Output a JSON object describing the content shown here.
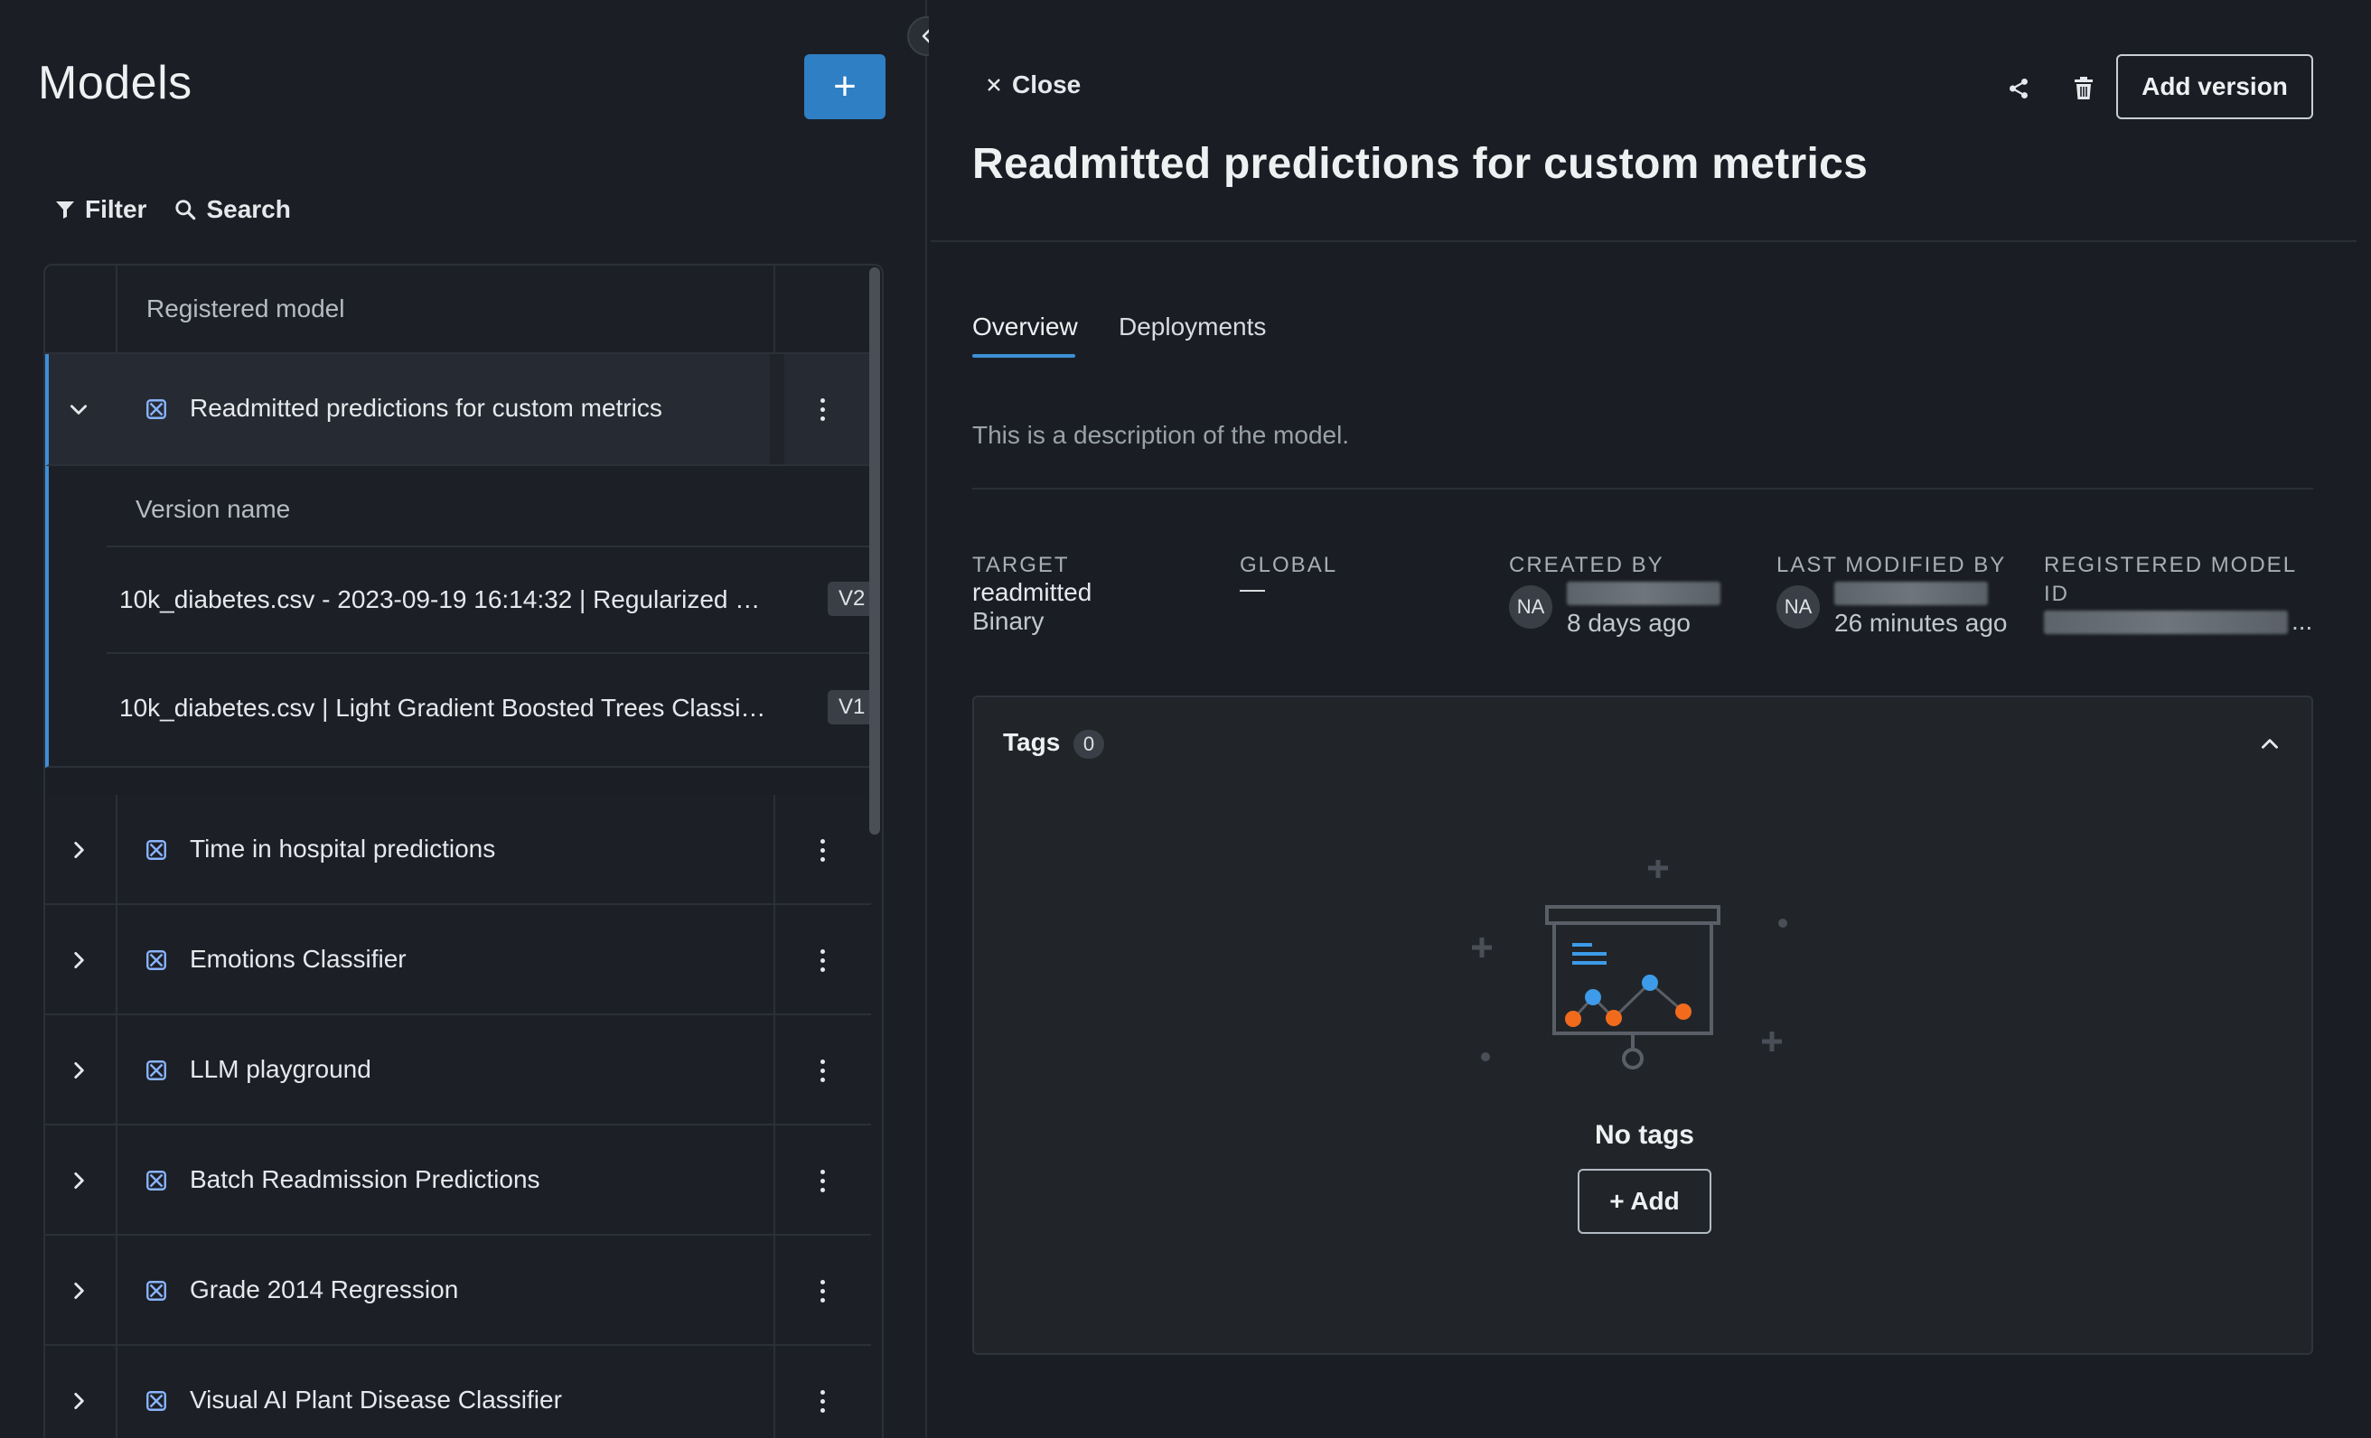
{
  "sidebar": {
    "title": "Models",
    "add_button": "+",
    "filter_label": "Filter",
    "search_label": "Search",
    "table": {
      "column_header": "Registered model",
      "expanded_model": {
        "name": "Readmitted predictions for custom metrics",
        "version_header": "Version name",
        "versions": [
          {
            "name": "10k_diabetes.csv - 2023-09-19 16:14:32 | Regularized Lo...",
            "badge": "V2"
          },
          {
            "name": "10k_diabetes.csv | Light Gradient Boosted Trees Classifi...",
            "badge": "V1"
          }
        ]
      },
      "models": [
        {
          "name": "Time in hospital predictions"
        },
        {
          "name": "Emotions Classifier"
        },
        {
          "name": "LLM playground"
        },
        {
          "name": "Batch Readmission Predictions"
        },
        {
          "name": "Grade 2014 Regression"
        },
        {
          "name": "Visual AI Plant Disease Classifier"
        }
      ]
    }
  },
  "detail": {
    "close_label": "Close",
    "add_version_label": "Add version",
    "title": "Readmitted predictions for custom metrics",
    "tabs": [
      {
        "label": "Overview",
        "active": true
      },
      {
        "label": "Deployments",
        "active": false
      }
    ],
    "description": "This is a description of the model.",
    "meta": {
      "target_label": "TARGET",
      "target_value": "readmitted",
      "target_type": "Binary",
      "global_label": "GLOBAL",
      "global_value": "—",
      "created_by_label": "CREATED BY",
      "created_by_avatar": "NA",
      "created_by_time": "8 days ago",
      "last_modified_label": "LAST MODIFIED BY",
      "last_modified_avatar": "NA",
      "last_modified_time": "26 minutes ago",
      "registered_id_label_1": "REGISTERED MODEL",
      "registered_id_label_2": "ID",
      "registered_id_ellipsis": "..."
    },
    "tags": {
      "title": "Tags",
      "count": "0",
      "empty_text": "No tags",
      "add_label": "+ Add"
    }
  },
  "colors": {
    "accent": "#3d8fd6",
    "primary_button": "#2f7fc4",
    "illustration_orange": "#f26b1d",
    "illustration_blue": "#3d9be9"
  },
  "icons": [
    "plus-icon",
    "filter-icon",
    "search-icon",
    "chevron-down-icon",
    "chevron-right-icon",
    "model-icon",
    "kebab-icon",
    "chevron-left-icon",
    "close-icon",
    "share-icon",
    "trash-icon",
    "chevron-up-icon"
  ]
}
